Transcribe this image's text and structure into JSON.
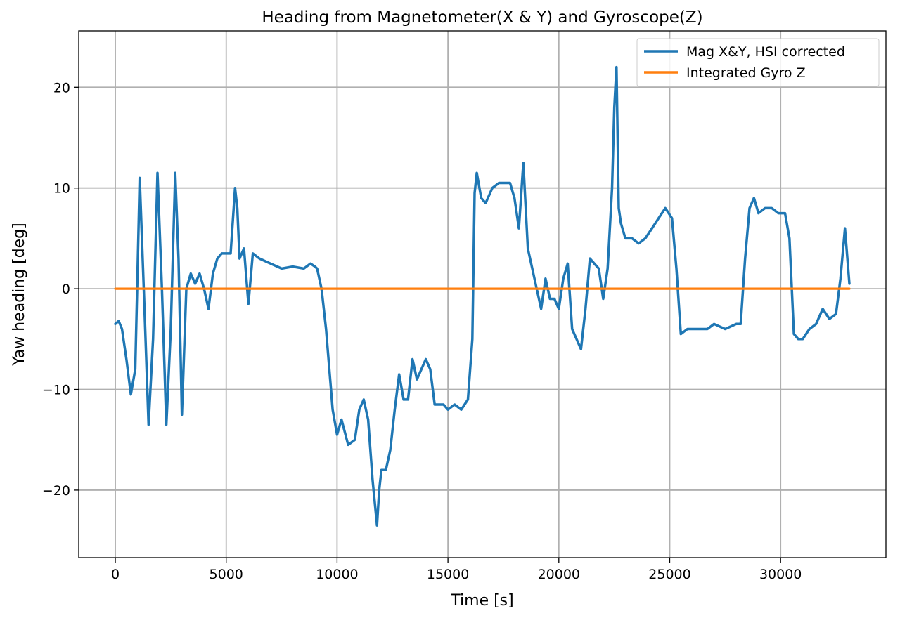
{
  "chart_data": {
    "type": "line",
    "title": "Heading from Magnetometer(X & Y) and Gyroscope(Z)",
    "xlabel": "Time [s]",
    "ylabel": "Yaw heading [deg]",
    "xlim": [
      -1650,
      34750
    ],
    "ylim": [
      -26.7,
      25.6
    ],
    "xticks": [
      0,
      5000,
      10000,
      15000,
      20000,
      25000,
      30000
    ],
    "xtick_labels": [
      "0",
      "5000",
      "10000",
      "15000",
      "20000",
      "25000",
      "30000"
    ],
    "yticks": [
      -20,
      -10,
      0,
      10,
      20
    ],
    "ytick_labels": [
      "−20",
      "−10",
      "0",
      "10",
      "20"
    ],
    "grid": true,
    "legend_position": "top-right",
    "series": [
      {
        "name": "Mag X&Y, HSI corrected",
        "color": "#1f77b4",
        "x": [
          0,
          150,
          300,
          500,
          700,
          900,
          1100,
          1300,
          1500,
          1700,
          1900,
          2100,
          2300,
          2500,
          2700,
          2850,
          3000,
          3200,
          3400,
          3600,
          3800,
          4000,
          4200,
          4400,
          4600,
          4800,
          5000,
          5200,
          5400,
          5500,
          5600,
          5800,
          6000,
          6200,
          6500,
          7000,
          7500,
          8000,
          8500,
          8800,
          9000,
          9100,
          9300,
          9500,
          9800,
          10000,
          10200,
          10500,
          10800,
          11000,
          11200,
          11400,
          11600,
          11800,
          11900,
          12000,
          12200,
          12400,
          12600,
          12800,
          13000,
          13200,
          13400,
          13600,
          13800,
          14000,
          14200,
          14400,
          14600,
          14800,
          15000,
          15300,
          15600,
          15900,
          16100,
          16200,
          16300,
          16500,
          16700,
          17000,
          17300,
          17600,
          17800,
          18000,
          18200,
          18400,
          18600,
          18800,
          19000,
          19200,
          19400,
          19600,
          19800,
          20000,
          20200,
          20400,
          20600,
          20800,
          21000,
          21200,
          21400,
          21600,
          21800,
          22000,
          22200,
          22400,
          22500,
          22600,
          22700,
          22800,
          23000,
          23300,
          23600,
          23900,
          24200,
          24500,
          24800,
          25100,
          25300,
          25500,
          25800,
          26200,
          26700,
          27000,
          27500,
          28000,
          28200,
          28400,
          28600,
          28800,
          29000,
          29300,
          29600,
          29900,
          30200,
          30400,
          30600,
          30800,
          31000,
          31300,
          31600,
          31900,
          32200,
          32500,
          32700,
          32900,
          33100
        ],
        "y": [
          -3.5,
          -3.2,
          -4,
          -7,
          -10.5,
          -8,
          11,
          -1,
          -13.5,
          -5,
          11.5,
          0,
          -13.5,
          -4,
          11.5,
          3,
          -12.5,
          0,
          1.5,
          0.5,
          1.5,
          0,
          -2,
          1.5,
          3,
          3.5,
          3.5,
          3.5,
          10,
          8,
          3,
          4,
          -1.5,
          3.5,
          3,
          2.5,
          2,
          2.2,
          2,
          2.5,
          2.2,
          2,
          0,
          -4,
          -12,
          -14.5,
          -13,
          -15.5,
          -15,
          -12,
          -11,
          -13,
          -19,
          -23.5,
          -20,
          -18,
          -18,
          -16,
          -12,
          -8.5,
          -11,
          -11,
          -7,
          -9,
          -8,
          -7,
          -8,
          -11.5,
          -11.5,
          -11.5,
          -12,
          -11.5,
          -12,
          -11,
          -5,
          9.5,
          11.5,
          9,
          8.5,
          10,
          10.5,
          10.5,
          10.5,
          9,
          6,
          12.5,
          4,
          2,
          0,
          -2,
          1,
          -1,
          -1,
          -2,
          1,
          2.5,
          -4,
          -5,
          -6,
          -2,
          3,
          2.5,
          2,
          -1,
          2,
          10,
          18,
          22,
          8,
          6.5,
          5,
          5,
          4.5,
          5,
          6,
          7,
          8,
          7,
          2,
          -4.5,
          -4,
          -4,
          -4,
          -3.5,
          -4,
          -3.5,
          -3.5,
          3,
          8,
          9,
          7.5,
          8,
          8,
          7.5,
          7.5,
          5,
          -4.5,
          -5,
          -5,
          -4,
          -3.5,
          -2,
          -3,
          -2.5,
          1,
          6,
          0.5
        ]
      },
      {
        "name": "Integrated Gyro Z",
        "color": "#ff7f0e",
        "x": [
          0,
          33100
        ],
        "y": [
          0,
          0
        ]
      }
    ]
  }
}
